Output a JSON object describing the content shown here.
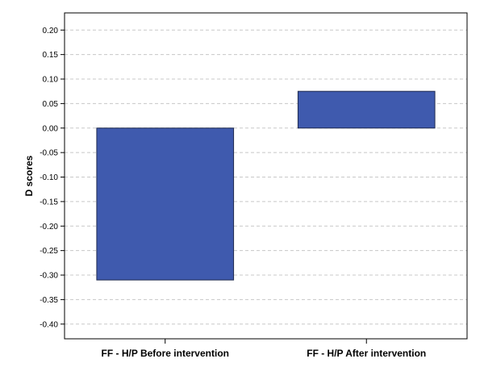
{
  "chart_data": {
    "type": "bar",
    "title": "",
    "xlabel": "",
    "ylabel": "D scores",
    "categories": [
      "FF - H/P Before intervention",
      "FF - H/P After intervention"
    ],
    "values": [
      -0.31,
      0.075
    ],
    "ylim": [
      -0.43,
      0.235
    ],
    "yticks": [
      0.2,
      0.15,
      0.1,
      0.05,
      0.0,
      -0.05,
      -0.1,
      -0.15,
      -0.2,
      -0.25,
      -0.3,
      -0.35,
      -0.4
    ],
    "ytick_labels": [
      "0.20",
      "0.15",
      "0.10",
      "0.05",
      "0.00",
      "-0.05",
      "-0.10",
      "-0.15",
      "-0.20",
      "-0.25",
      "-0.30",
      "-0.35",
      "-0.40"
    ],
    "grid": true,
    "legend": "none",
    "bar_color": "#3f5aae",
    "bar_edge_color": "#1f2a4f",
    "grid_color": "#c8c8c8"
  }
}
